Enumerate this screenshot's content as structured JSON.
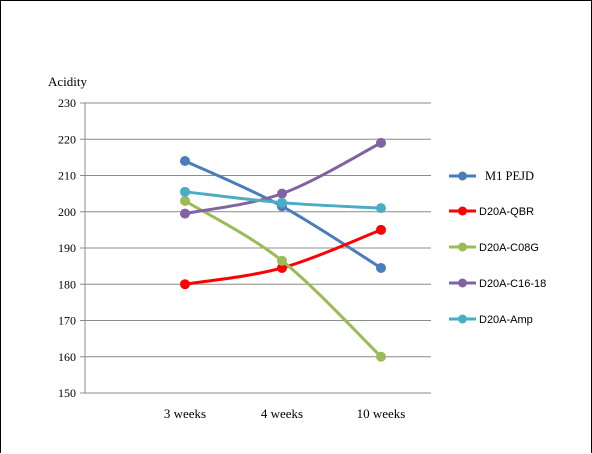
{
  "chart_data": {
    "type": "line",
    "title": "",
    "xlabel": "",
    "ylabel": "Acidity",
    "categories": [
      "3 weeks",
      "4 weeks",
      "10 weeks"
    ],
    "ylim": [
      150,
      230
    ],
    "yticks": [
      150,
      160,
      170,
      180,
      190,
      200,
      210,
      220,
      230
    ],
    "grid": true,
    "legend_position": "right",
    "smooth": true,
    "series": [
      {
        "name": "M1 PEJD",
        "color": "#4a7ebb",
        "values": [
          214,
          201.5,
          184.5
        ]
      },
      {
        "name": "D20A-QBR",
        "color": "#ff0000",
        "values": [
          180,
          184.5,
          195
        ]
      },
      {
        "name": "D20A-C08G",
        "color": "#9bbb59",
        "values": [
          203,
          186.5,
          160
        ]
      },
      {
        "name": "D20A-C16-18",
        "color": "#8064a2",
        "values": [
          199.5,
          205,
          219
        ]
      },
      {
        "name": "D20A-Amp",
        "color": "#4bacc6",
        "values": [
          205.5,
          202.5,
          201
        ]
      }
    ]
  }
}
